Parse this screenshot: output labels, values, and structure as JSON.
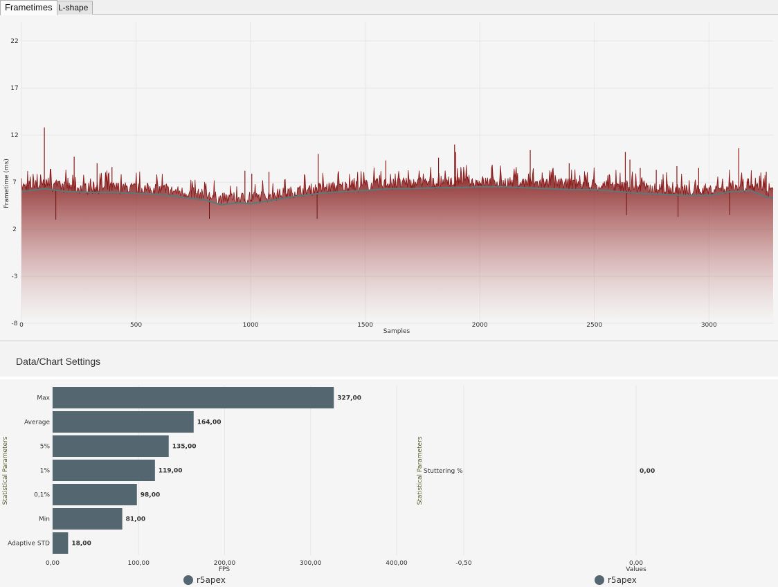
{
  "tabs": [
    {
      "label": "Frametimes",
      "active": true
    },
    {
      "label": "L-shape",
      "active": false
    }
  ],
  "settings": {
    "title": "Data/Chart Settings"
  },
  "colors": {
    "frametime_series": "#8b1a1a",
    "moving_average": "#5a7a7a",
    "bar_fill": "#546670",
    "legend_marker": "#546670"
  },
  "chart_data": [
    {
      "type": "area",
      "ylabel": "Frametime (ms)",
      "xlabel": "Samples",
      "xlim": [
        0,
        3280
      ],
      "ylim": [
        -8,
        24
      ],
      "x_ticks": [
        0,
        500,
        1000,
        1500,
        2000,
        2500,
        3000
      ],
      "y_ticks": [
        -8,
        -3,
        2,
        7,
        12,
        17,
        22
      ],
      "grid": true,
      "legend": "none",
      "series": [
        {
          "name": "",
          "kind": "frametimes",
          "color": "#8b1a1a",
          "baseline_points": [
            [
              0,
              6.2
            ],
            [
              100,
              6.4
            ],
            [
              200,
              6.1
            ],
            [
              300,
              6.0
            ],
            [
              400,
              6.1
            ],
            [
              500,
              6.0
            ],
            [
              600,
              5.9
            ],
            [
              700,
              5.6
            ],
            [
              800,
              5.3
            ],
            [
              870,
              4.9
            ],
            [
              950,
              5.0
            ],
            [
              1000,
              4.9
            ],
            [
              1100,
              5.3
            ],
            [
              1200,
              5.7
            ],
            [
              1300,
              6.0
            ],
            [
              1400,
              6.2
            ],
            [
              1500,
              6.3
            ],
            [
              1600,
              6.5
            ],
            [
              1700,
              6.5
            ],
            [
              1800,
              6.6
            ],
            [
              1900,
              6.6
            ],
            [
              2000,
              6.7
            ],
            [
              2100,
              6.7
            ],
            [
              2200,
              6.6
            ],
            [
              2300,
              6.5
            ],
            [
              2400,
              6.4
            ],
            [
              2500,
              6.4
            ],
            [
              2600,
              6.2
            ],
            [
              2700,
              6.0
            ],
            [
              2800,
              5.9
            ],
            [
              2900,
              5.8
            ],
            [
              3000,
              5.8
            ],
            [
              3100,
              6.2
            ],
            [
              3180,
              6.3
            ],
            [
              3250,
              5.6
            ],
            [
              3280,
              5.5
            ]
          ],
          "spikes": [
            [
              100,
              12.8
            ],
            [
              230,
              9.7
            ],
            [
              330,
              9.0
            ],
            [
              395,
              8.6
            ],
            [
              975,
              8.2
            ],
            [
              1005,
              7.9
            ],
            [
              1080,
              8.1
            ],
            [
              1295,
              10.0
            ],
            [
              1590,
              9.3
            ],
            [
              1820,
              9.6
            ],
            [
              1890,
              11.0
            ],
            [
              1895,
              10.2
            ],
            [
              2220,
              10.4
            ],
            [
              2390,
              9.0
            ],
            [
              2635,
              10.2
            ],
            [
              2655,
              9.4
            ],
            [
              2700,
              8.5
            ],
            [
              2770,
              8.3
            ],
            [
              2860,
              8.7
            ],
            [
              2955,
              8.5
            ],
            [
              3130,
              10.6
            ],
            [
              3250,
              8.1
            ]
          ],
          "dips": [
            [
              150,
              3.0
            ],
            [
              820,
              3.1
            ],
            [
              1290,
              3.1
            ],
            [
              2640,
              3.5
            ],
            [
              2865,
              3.3
            ],
            [
              3090,
              3.5
            ]
          ]
        },
        {
          "name": "",
          "kind": "moving_average",
          "color": "#5a7a7a",
          "points": [
            [
              0,
              6.0
            ],
            [
              100,
              6.3
            ],
            [
              200,
              6.0
            ],
            [
              300,
              5.9
            ],
            [
              400,
              5.9
            ],
            [
              500,
              5.8
            ],
            [
              600,
              5.7
            ],
            [
              700,
              5.4
            ],
            [
              800,
              5.1
            ],
            [
              870,
              4.6
            ],
            [
              950,
              4.8
            ],
            [
              1000,
              4.7
            ],
            [
              1100,
              5.1
            ],
            [
              1200,
              5.5
            ],
            [
              1300,
              5.8
            ],
            [
              1400,
              6.0
            ],
            [
              1500,
              6.1
            ],
            [
              1600,
              6.3
            ],
            [
              1700,
              6.3
            ],
            [
              1800,
              6.4
            ],
            [
              1900,
              6.4
            ],
            [
              2000,
              6.5
            ],
            [
              2100,
              6.5
            ],
            [
              2200,
              6.4
            ],
            [
              2300,
              6.3
            ],
            [
              2400,
              6.2
            ],
            [
              2500,
              6.2
            ],
            [
              2600,
              6.0
            ],
            [
              2700,
              5.8
            ],
            [
              2800,
              5.7
            ],
            [
              2900,
              5.6
            ],
            [
              3000,
              5.6
            ],
            [
              3100,
              6.0
            ],
            [
              3180,
              6.1
            ],
            [
              3250,
              5.4
            ],
            [
              3280,
              5.3
            ]
          ]
        }
      ]
    },
    {
      "type": "bar",
      "orientation": "horizontal",
      "categories": [
        "Max",
        "Average",
        "5%",
        "1%",
        "0,1%",
        "Min",
        "Adaptive STD"
      ],
      "values": [
        327,
        164,
        135,
        119,
        98,
        81,
        18
      ],
      "value_labels": [
        "327,00",
        "164,00",
        "135,00",
        "119,00",
        "98,00",
        "81,00",
        "18,00"
      ],
      "xlabel": "FPS",
      "ylabel": "Statistical Parameters",
      "xlim": [
        0,
        400
      ],
      "x_ticks": [
        0,
        100,
        200,
        300,
        400
      ],
      "x_tick_labels": [
        "0,00",
        "100,00",
        "200,00",
        "300,00",
        "400,00"
      ],
      "legend": "bottom",
      "series": [
        {
          "name": "r5apex",
          "values": [
            327,
            164,
            135,
            119,
            98,
            81,
            18
          ]
        }
      ]
    },
    {
      "type": "bar",
      "orientation": "horizontal",
      "categories": [
        "Stuttering %"
      ],
      "values": [
        0
      ],
      "value_labels": [
        "0,00"
      ],
      "xlabel": "Values",
      "ylabel": "Statistical Parameters",
      "xlim": [
        -0.5,
        0
      ],
      "x_ticks": [
        -0.5,
        0
      ],
      "x_tick_labels": [
        "-0,50",
        "0,00"
      ],
      "legend": "bottom",
      "series": [
        {
          "name": "r5apex",
          "values": [
            0
          ]
        }
      ]
    }
  ]
}
